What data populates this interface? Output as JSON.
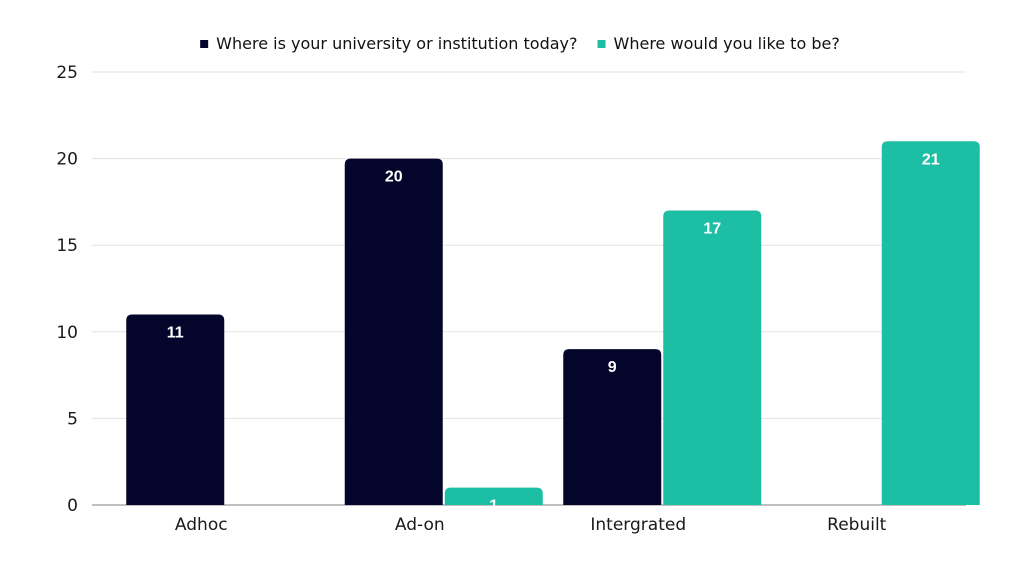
{
  "chart_data": {
    "type": "bar",
    "title": "",
    "xlabel": "",
    "ylabel": "",
    "categories": [
      "Adhoc",
      "Ad-on",
      "Intergrated",
      "Rebuilt"
    ],
    "series": [
      {
        "name": "Where is your university or institution today?",
        "color": "#03052b",
        "values": [
          11,
          20,
          9,
          0
        ]
      },
      {
        "name": "Where would you like to be?",
        "color": "#1dbfa4",
        "values": [
          0,
          1,
          17,
          21
        ]
      }
    ],
    "data_labels": [
      [
        "11",
        "20",
        "9",
        ""
      ],
      [
        "",
        "1",
        "17",
        "21"
      ]
    ],
    "ylim": [
      0,
      25
    ],
    "yticks": [
      0,
      5,
      10,
      15,
      20,
      25
    ],
    "grid": true,
    "gridColor": "#e3e3e3",
    "axisColor": "#9a9a9a",
    "legend_position": "top-center"
  }
}
